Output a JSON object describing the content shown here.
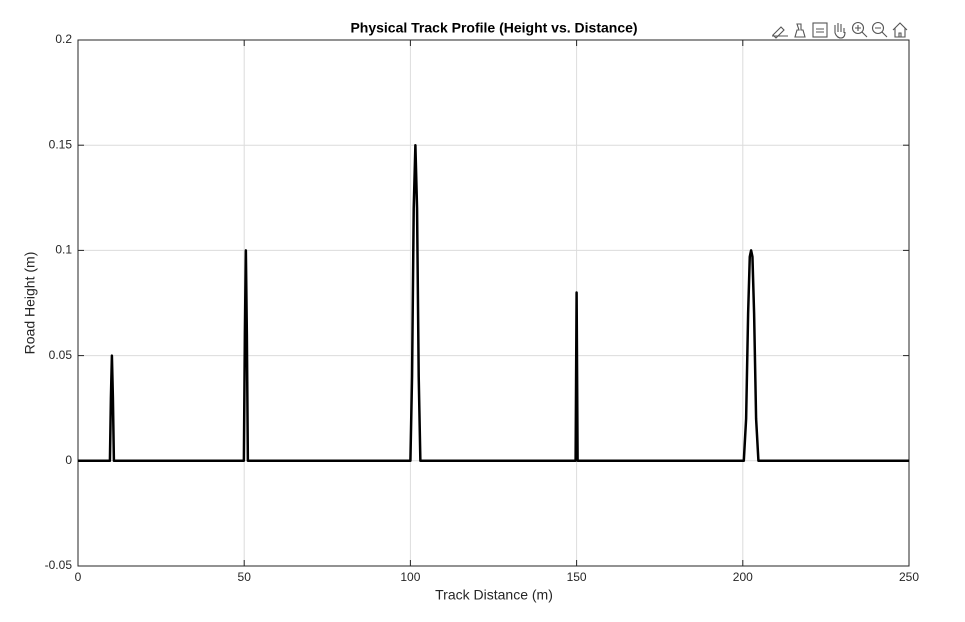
{
  "chart_data": {
    "type": "line",
    "title": "Physical Track Profile (Height vs. Distance)",
    "xlabel": "Track Distance (m)",
    "ylabel": "Road Height (m)",
    "x": [
      0,
      9.6,
      9.9,
      10.2,
      10.5,
      10.8,
      49.9,
      50.2,
      50.5,
      50.8,
      51.1,
      100,
      100.5,
      101,
      101.5,
      102,
      102.5,
      103,
      149.7,
      150,
      150.3,
      200.3,
      201,
      201.6,
      202.1,
      202.5,
      202.9,
      203.4,
      204,
      204.7,
      250
    ],
    "values": [
      0,
      0,
      0.03,
      0.05,
      0.03,
      0,
      0,
      0.06,
      0.1,
      0.06,
      0,
      0,
      0.04,
      0.12,
      0.15,
      0.12,
      0.04,
      0,
      0,
      0.08,
      0,
      0,
      0.02,
      0.07,
      0.097,
      0.1,
      0.097,
      0.07,
      0.02,
      0,
      0
    ],
    "color": "#000000",
    "xlim": [
      0,
      250
    ],
    "xticks": [
      0,
      50,
      100,
      150,
      200,
      250
    ],
    "ylim": [
      -0.05,
      0.2
    ],
    "yticks": [
      -0.05,
      0,
      0.05,
      0.1,
      0.15,
      0.2
    ],
    "grid": true
  }
}
